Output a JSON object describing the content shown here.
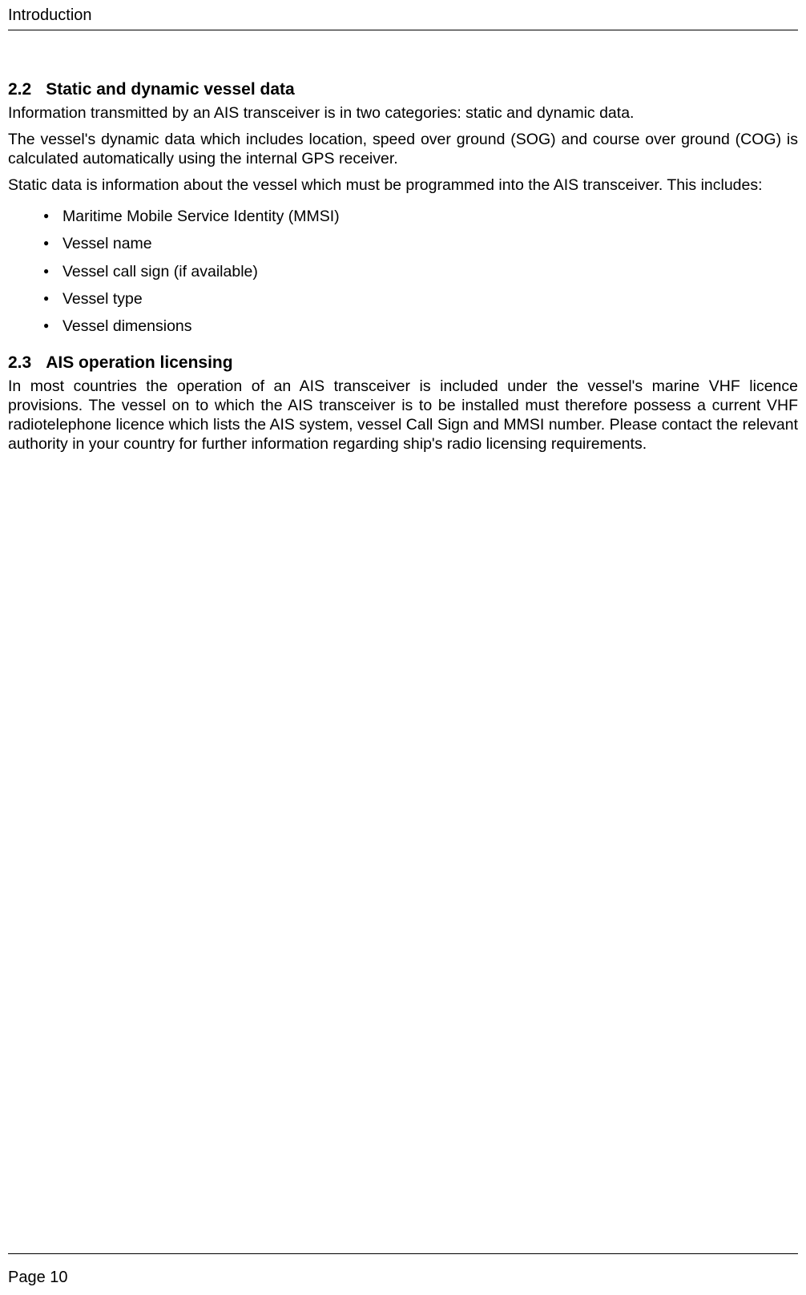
{
  "header": {
    "title": "Introduction"
  },
  "sections": {
    "s22": {
      "number": "2.2",
      "title": "Static and dynamic vessel data",
      "p1": "Information transmitted by an AIS transceiver is in two categories: static and dynamic data.",
      "p2": "The vessel's dynamic data which includes location, speed over ground (SOG) and course over ground (COG) is calculated automatically using the internal GPS receiver.",
      "p3": "Static data is information about the vessel which must be programmed into the AIS transceiver. This includes:",
      "bullets": {
        "b0": "Maritime Mobile Service Identity (MMSI)",
        "b1": "Vessel name",
        "b2": "Vessel call sign (if available)",
        "b3": "Vessel type",
        "b4": "Vessel dimensions"
      }
    },
    "s23": {
      "number": "2.3",
      "title": "AIS operation licensing",
      "p1": "In most countries the operation of an AIS transceiver is included under the vessel's marine VHF licence provisions. The vessel on to which the AIS transceiver is to be installed must therefore possess a current VHF radiotelephone licence which lists the AIS system, vessel Call Sign and MMSI number. Please contact the relevant authority in your country for further information regarding ship's radio licensing requirements."
    }
  },
  "footer": {
    "page_label": "Page 10"
  }
}
